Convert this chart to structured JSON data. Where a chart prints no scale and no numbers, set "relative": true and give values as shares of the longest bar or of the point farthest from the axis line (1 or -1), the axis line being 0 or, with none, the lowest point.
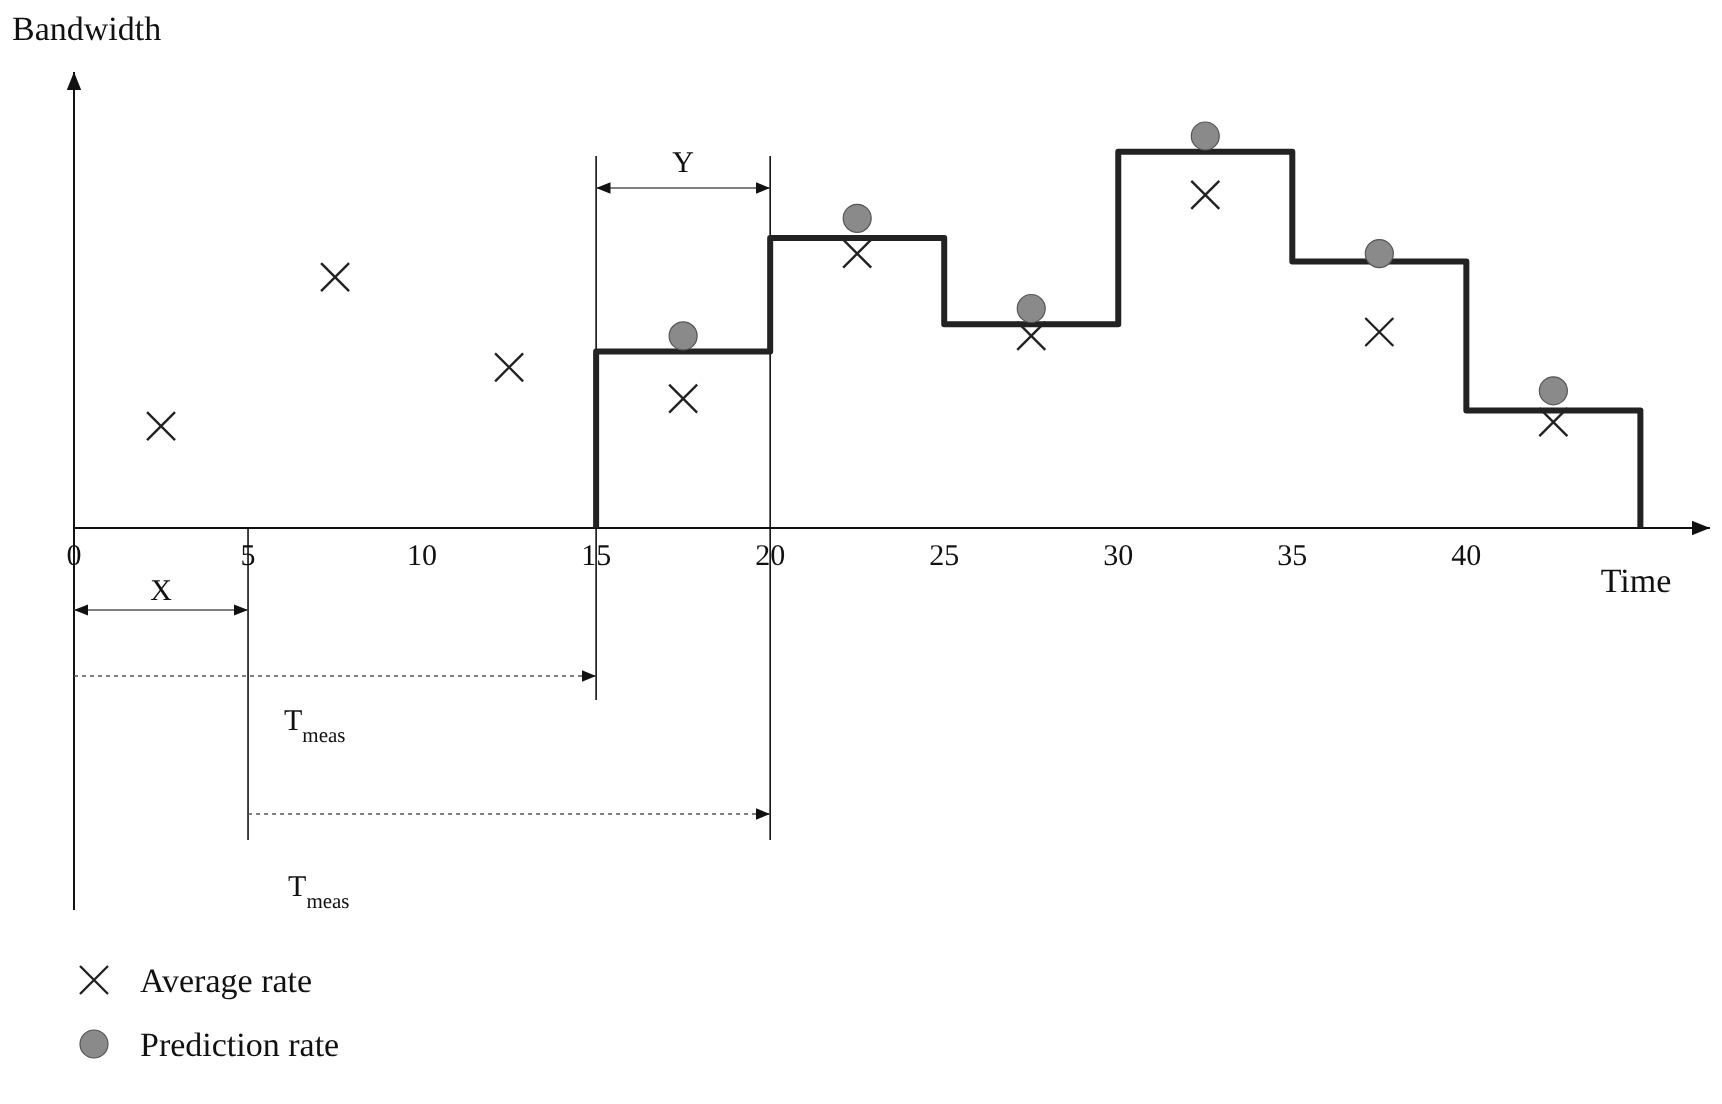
{
  "chart_data": {
    "type": "step",
    "relative": true,
    "xlabel": "Time",
    "ylabel": "Bandwidth",
    "xlim": [
      0,
      47
    ],
    "xticks": [
      0,
      5,
      10,
      15,
      20,
      25,
      30,
      35,
      40
    ],
    "tick_labels": "x",
    "legend": "bottom left",
    "series": [
      {
        "color": "#222222",
        "marker": "none",
        "x": [
          15,
          15,
          20,
          25,
          30,
          35,
          40,
          45
        ],
        "values": [
          0,
          0.45,
          0.74,
          0.52,
          0.96,
          0.68,
          0.3,
          0
        ]
      },
      {
        "type": "scatter",
        "name": "Average rate",
        "color": "#222222",
        "marker": "cross",
        "x": [
          2.5,
          7.5,
          12.5,
          17.5,
          22.5,
          27.5,
          32.5,
          37.5,
          42.5
        ],
        "values": [
          0.26,
          0.64,
          0.41,
          0.33,
          0.7,
          0.49,
          0.85,
          0.5,
          0.27
        ]
      },
      {
        "type": "scatter",
        "name": "Prediction rate",
        "color": "#8a8a8a",
        "marker": "circle",
        "x": [
          17.5,
          22.5,
          27.5,
          32.5,
          37.5,
          42.5
        ],
        "values": [
          0.49,
          0.79,
          0.56,
          1,
          0.7,
          0.35
        ]
      }
    ],
    "annotations": [
      "X",
      "Y",
      "T$_{meas}$",
      "T$_{meas}$"
    ]
  }
}
